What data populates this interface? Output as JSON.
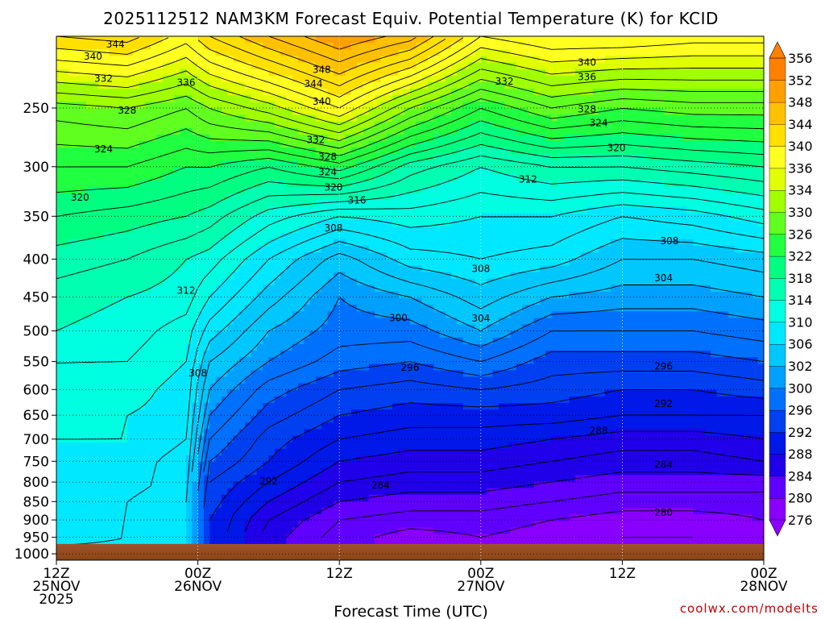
{
  "title": "2025112512 NAM3KM Forecast Equiv. Potential Temperature (K) for KCID",
  "x_axis_label": "Forecast Time (UTC)",
  "credit": "coolwx.com/modelts",
  "chart_data": {
    "type": "heatmap",
    "title": "2025112512 NAM3KM Forecast Equiv. Potential Temperature (K) for KCID",
    "xlabel": "Forecast Time (UTC)",
    "ylabel": "",
    "units": "K",
    "x_ticks": [
      {
        "hour": 0,
        "lines": [
          "12Z",
          "25NOV",
          "2025"
        ]
      },
      {
        "hour": 12,
        "lines": [
          "00Z",
          "26NOV"
        ]
      },
      {
        "hour": 24,
        "lines": [
          "12Z"
        ]
      },
      {
        "hour": 36,
        "lines": [
          "00Z",
          "27NOV"
        ]
      },
      {
        "hour": 48,
        "lines": [
          "12Z"
        ]
      },
      {
        "hour": 60,
        "lines": [
          "00Z",
          "28NOV"
        ]
      }
    ],
    "x_range_hours": [
      0,
      60
    ],
    "y_axis": "pressure (hPa), log scale, reversed",
    "y_range": [
      200,
      1020
    ],
    "y_ticks": [
      250,
      300,
      350,
      400,
      450,
      500,
      550,
      600,
      650,
      700,
      750,
      800,
      850,
      900,
      950,
      1000
    ],
    "surface_pressure": 970,
    "grid": "dotted",
    "colorbar": {
      "levels": [
        276,
        280,
        284,
        288,
        292,
        296,
        300,
        302,
        306,
        310,
        314,
        318,
        322,
        326,
        330,
        334,
        336,
        340,
        344,
        348,
        352,
        356
      ],
      "labels": [
        "356",
        "352",
        "348",
        "344",
        "340",
        "336",
        "334",
        "330",
        "326",
        "322",
        "318",
        "314",
        "310",
        "306",
        "302",
        "300",
        "296",
        "292",
        "288",
        "284",
        "280",
        "276"
      ]
    },
    "profiles": [
      {
        "hour": 0,
        "values": {
          "1000": 307,
          "950": 309,
          "900": 309,
          "850": 310,
          "800": 310,
          "750": 310,
          "700": 310,
          "650": 311,
          "600": 312,
          "550": 312,
          "500": 314,
          "450": 315,
          "400": 317,
          "350": 320,
          "300": 324,
          "250": 329,
          "200": 342
        }
      },
      {
        "hour": 6,
        "values": {
          "1000": 307,
          "950": 308,
          "900": 308,
          "850": 308,
          "800": 309,
          "750": 309,
          "700": 310,
          "650": 310,
          "600": 311,
          "550": 312,
          "500": 313,
          "450": 314,
          "400": 316,
          "350": 319,
          "300": 324,
          "250": 330,
          "200": 343
        }
      },
      {
        "hour": 11,
        "values": {
          "1000": 306,
          "950": 306,
          "900": 306,
          "850": 306,
          "800": 307,
          "750": 307,
          "700": 308,
          "650": 309,
          "600": 309,
          "550": 310,
          "500": 311,
          "450": 313,
          "400": 314,
          "350": 318,
          "300": 322,
          "250": 328,
          "200": 339
        }
      },
      {
        "hour": 13,
        "values": {
          "1000": 292,
          "950": 292,
          "900": 292,
          "850": 293,
          "800": 294,
          "750": 296,
          "700": 298,
          "650": 300,
          "600": 302,
          "550": 304,
          "500": 307,
          "450": 310,
          "400": 313,
          "350": 317,
          "300": 322,
          "250": 330,
          "200": 342
        }
      },
      {
        "hour": 18,
        "values": {
          "1000": 285,
          "950": 285,
          "900": 286,
          "850": 288,
          "800": 290,
          "750": 292,
          "700": 293,
          "650": 295,
          "600": 297,
          "550": 300,
          "500": 302,
          "450": 305,
          "400": 308,
          "350": 313,
          "300": 320,
          "250": 333,
          "200": 346
        }
      },
      {
        "hour": 24,
        "values": {
          "1000": 281,
          "950": 281,
          "900": 282,
          "850": 284,
          "800": 286,
          "750": 288,
          "700": 290,
          "650": 292,
          "600": 294,
          "550": 297,
          "500": 299,
          "450": 300,
          "400": 303,
          "350": 310,
          "300": 323,
          "250": 338,
          "200": 350
        }
      },
      {
        "hour": 30,
        "values": {
          "1000": 279,
          "950": 279,
          "900": 281,
          "850": 283,
          "800": 285,
          "750": 287,
          "700": 289,
          "650": 291,
          "600": 293,
          "550": 296,
          "500": 299,
          "450": 302,
          "400": 307,
          "350": 311,
          "300": 317,
          "250": 330,
          "200": 347
        }
      },
      {
        "hour": 36,
        "values": {
          "1000": 280,
          "950": 280,
          "900": 281,
          "850": 283,
          "800": 285,
          "750": 287,
          "700": 289,
          "650": 291,
          "600": 294,
          "550": 298,
          "500": 302,
          "450": 305,
          "400": 308,
          "350": 310,
          "300": 314,
          "250": 324,
          "200": 338
        }
      },
      {
        "hour": 42,
        "values": {
          "1000": 279,
          "950": 279,
          "900": 280,
          "850": 282,
          "800": 284,
          "750": 286,
          "700": 288,
          "650": 291,
          "600": 293,
          "550": 295,
          "500": 298,
          "450": 302,
          "400": 307,
          "350": 310,
          "300": 316,
          "250": 328,
          "200": 340
        }
      },
      {
        "hour": 48,
        "values": {
          "1000": 278,
          "950": 278,
          "900": 279,
          "850": 281,
          "800": 283,
          "750": 285,
          "700": 287,
          "650": 290,
          "600": 292,
          "550": 295,
          "500": 298,
          "450": 301,
          "400": 304,
          "350": 308,
          "300": 316,
          "250": 326,
          "200": 340
        }
      },
      {
        "hour": 54,
        "values": {
          "1000": 278,
          "950": 278,
          "900": 279,
          "850": 281,
          "800": 283,
          "750": 285,
          "700": 287,
          "650": 290,
          "600": 292,
          "550": 295,
          "500": 298,
          "450": 301,
          "400": 304,
          "350": 309,
          "300": 317,
          "250": 327,
          "200": 339
        }
      },
      {
        "hour": 60,
        "values": {
          "1000": 279,
          "950": 279,
          "900": 280,
          "850": 281,
          "800": 283,
          "750": 286,
          "700": 288,
          "650": 290,
          "600": 293,
          "550": 296,
          "500": 299,
          "450": 302,
          "400": 305,
          "350": 311,
          "300": 318,
          "250": 327,
          "200": 339
        }
      }
    ],
    "contour_labels": [
      {
        "text": "344",
        "hour": 5.0,
        "p": 205
      },
      {
        "text": "340",
        "hour": 3.1,
        "p": 213
      },
      {
        "text": "332",
        "hour": 4.0,
        "p": 228
      },
      {
        "text": "336",
        "hour": 11.0,
        "p": 231
      },
      {
        "text": "328",
        "hour": 6.0,
        "p": 252
      },
      {
        "text": "348",
        "hour": 22.5,
        "p": 222
      },
      {
        "text": "344",
        "hour": 21.8,
        "p": 232
      },
      {
        "text": "340",
        "hour": 22.5,
        "p": 245
      },
      {
        "text": "332",
        "hour": 22.0,
        "p": 276
      },
      {
        "text": "328",
        "hour": 23.0,
        "p": 291
      },
      {
        "text": "324",
        "hour": 23.0,
        "p": 305
      },
      {
        "text": "320",
        "hour": 23.5,
        "p": 320
      },
      {
        "text": "316",
        "hour": 25.5,
        "p": 333
      },
      {
        "text": "308",
        "hour": 23.5,
        "p": 363
      },
      {
        "text": "332",
        "hour": 38.0,
        "p": 230
      },
      {
        "text": "340",
        "hour": 45.0,
        "p": 217
      },
      {
        "text": "336",
        "hour": 45.0,
        "p": 227
      },
      {
        "text": "328",
        "hour": 45.0,
        "p": 251
      },
      {
        "text": "324",
        "hour": 46.0,
        "p": 262
      },
      {
        "text": "320",
        "hour": 47.5,
        "p": 283
      },
      {
        "text": "312",
        "hour": 40.0,
        "p": 312
      },
      {
        "text": "308",
        "hour": 52.0,
        "p": 378
      },
      {
        "text": "304",
        "hour": 51.5,
        "p": 424
      },
      {
        "text": "308",
        "hour": 36.0,
        "p": 412
      },
      {
        "text": "324",
        "hour": 4.0,
        "p": 284
      },
      {
        "text": "320",
        "hour": 2.0,
        "p": 330
      },
      {
        "text": "312",
        "hour": 11.0,
        "p": 441
      },
      {
        "text": "308",
        "hour": 12.0,
        "p": 570
      },
      {
        "text": "300",
        "hour": 29.0,
        "p": 480
      },
      {
        "text": "304",
        "hour": 36.0,
        "p": 481
      },
      {
        "text": "296",
        "hour": 30.0,
        "p": 560
      },
      {
        "text": "296",
        "hour": 51.5,
        "p": 558
      },
      {
        "text": "292",
        "hour": 51.5,
        "p": 627
      },
      {
        "text": "288",
        "hour": 46.0,
        "p": 682
      },
      {
        "text": "284",
        "hour": 51.5,
        "p": 758
      },
      {
        "text": "292",
        "hour": 18.0,
        "p": 798
      },
      {
        "text": "284",
        "hour": 27.5,
        "p": 808
      },
      {
        "text": "280",
        "hour": 51.5,
        "p": 880
      }
    ]
  }
}
